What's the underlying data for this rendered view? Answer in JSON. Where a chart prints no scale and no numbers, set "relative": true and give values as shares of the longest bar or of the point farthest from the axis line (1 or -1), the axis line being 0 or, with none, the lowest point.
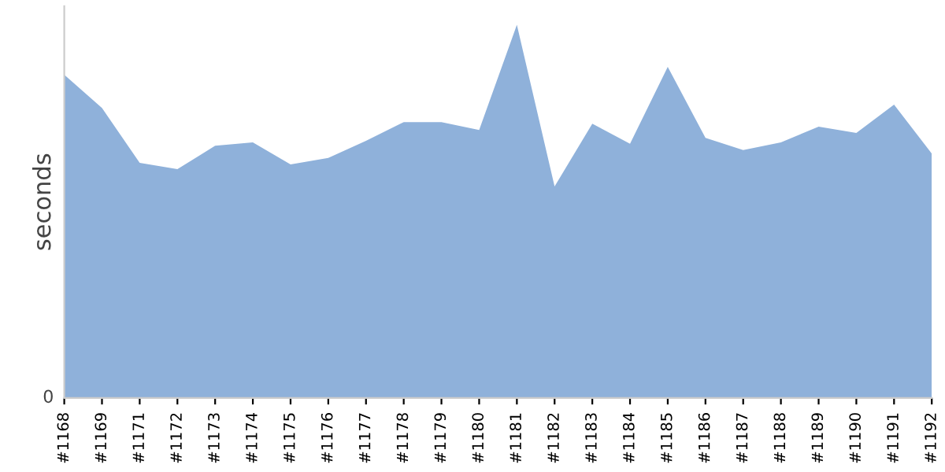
{
  "chart_data": {
    "type": "area",
    "relative": true,
    "ylabel": "seconds",
    "annotations": [
      "0"
    ],
    "grid": false,
    "legend": false,
    "categories": [
      "#1168",
      "#1169",
      "#1171",
      "#1172",
      "#1173",
      "#1174",
      "#1175",
      "#1176",
      "#1177",
      "#1178",
      "#1179",
      "#1180",
      "#1181",
      "#1182",
      "#1183",
      "#1184",
      "#1185",
      "#1186",
      "#1187",
      "#1188",
      "#1189",
      "#1190",
      "#1191",
      "#1192"
    ],
    "series": [
      {
        "color": "#8fb1da",
        "values": [
          0.866,
          0.777,
          0.63,
          0.613,
          0.676,
          0.685,
          0.626,
          0.643,
          0.689,
          0.739,
          0.739,
          0.718,
          1,
          0.567,
          0.735,
          0.681,
          0.887,
          0.697,
          0.664,
          0.685,
          0.727,
          0.71,
          0.786,
          0.655
        ]
      }
    ]
  }
}
